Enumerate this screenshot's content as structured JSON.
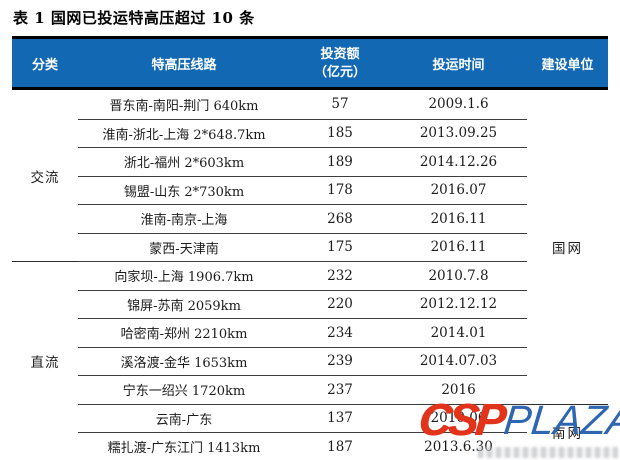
{
  "title": "表 1 国网已投运特高压超过 10 条",
  "table": {
    "header": {
      "category": "分类",
      "line": "特高压线路",
      "investment_line1": "投资额",
      "investment_line2": "（亿元）",
      "date": "投运时间",
      "builder": "建设单位"
    },
    "groups": {
      "ac": "交流",
      "dc": "直流"
    },
    "builders": {
      "state_grid": "国网",
      "south_grid": "南网"
    },
    "rows": [
      {
        "line": "晋东南-南阳-荆门 640km",
        "investment": "57",
        "date": "2009.1.6"
      },
      {
        "line": "淮南-浙北-上海 2*648.7km",
        "investment": "185",
        "date": "2013.09.25"
      },
      {
        "line": "浙北-福州 2*603km",
        "investment": "189",
        "date": "2014.12.26"
      },
      {
        "line": "锡盟-山东 2*730km",
        "investment": "178",
        "date": "2016.07"
      },
      {
        "line": "淮南-南京-上海",
        "investment": "268",
        "date": "2016.11"
      },
      {
        "line": "蒙西-天津南",
        "investment": "175",
        "date": "2016.11"
      },
      {
        "line": "向家坝-上海 1906.7km",
        "investment": "232",
        "date": "2010.7.8"
      },
      {
        "line": "锦屏-苏南 2059km",
        "investment": "220",
        "date": "2012.12.12"
      },
      {
        "line": "哈密南-郑州 2210km",
        "investment": "234",
        "date": "2014.01"
      },
      {
        "line": "溪洛渡-金华 1653km",
        "investment": "239",
        "date": "2014.07.03"
      },
      {
        "line": "宁东一绍兴 1720km",
        "investment": "237",
        "date": "2016"
      },
      {
        "line": "云南-广东",
        "investment": "137",
        "date": "2010.06"
      },
      {
        "line": "糯扎渡-广东江门 1413km",
        "investment": "187",
        "date": "2013.6.30"
      }
    ]
  },
  "watermark": {
    "csp": "CSP",
    "plaza": "PLAZA"
  },
  "colors": {
    "header_bg": "#1268B3",
    "header_text": "#FFFFFF",
    "watermark_red": "#E2331B",
    "watermark_blue": "#2E66B0"
  }
}
